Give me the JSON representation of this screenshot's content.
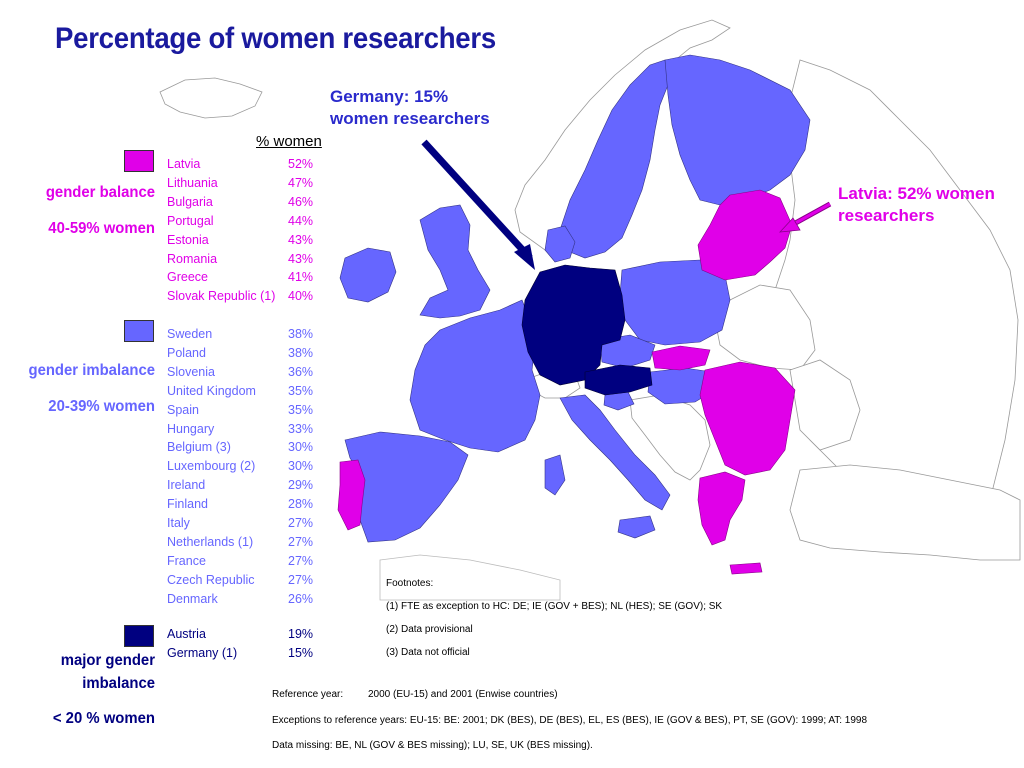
{
  "title": "Percentage of women researchers",
  "colors": {
    "title": "#1a1a9e",
    "balance": "#e000e8",
    "imbalance": "#6666ff",
    "major_imbalance": "#000080",
    "land": "#ffffff",
    "border": "#888888"
  },
  "table_header": "% women",
  "categories": [
    {
      "id": "balance",
      "label_lines": [
        "gender balance",
        "40-59% women"
      ],
      "color": "#e000e8",
      "rows": [
        {
          "country": "Latvia",
          "value": "52%"
        },
        {
          "country": "Lithuania",
          "value": "47%"
        },
        {
          "country": "Bulgaria",
          "value": "46%"
        },
        {
          "country": "Portugal",
          "value": "44%"
        },
        {
          "country": "Estonia",
          "value": "43%"
        },
        {
          "country": "Romania",
          "value": "43%"
        },
        {
          "country": "Greece",
          "value": "41%"
        },
        {
          "country": "Slovak Republic (1)",
          "value": "40%"
        }
      ]
    },
    {
      "id": "imbalance",
      "label_lines": [
        "gender imbalance",
        "20-39% women"
      ],
      "color": "#6666ff",
      "rows": [
        {
          "country": "Sweden",
          "value": "38%"
        },
        {
          "country": "Poland",
          "value": "38%"
        },
        {
          "country": "Slovenia",
          "value": "36%"
        },
        {
          "country": "United Kingdom",
          "value": "35%"
        },
        {
          "country": "Spain",
          "value": "35%"
        },
        {
          "country": "Hungary",
          "value": "33%"
        },
        {
          "country": "Belgium (3)",
          "value": "30%"
        },
        {
          "country": "Luxembourg (2)",
          "value": "30%"
        },
        {
          "country": "Ireland",
          "value": "29%"
        },
        {
          "country": "Finland",
          "value": "28%"
        },
        {
          "country": "Italy",
          "value": "27%"
        },
        {
          "country": "Netherlands (1)",
          "value": "27%"
        },
        {
          "country": "France",
          "value": "27%"
        },
        {
          "country": "Czech Republic",
          "value": "27%"
        },
        {
          "country": "Denmark",
          "value": "26%"
        }
      ]
    },
    {
      "id": "major",
      "label_lines": [
        "major gender",
        "imbalance",
        "< 20 % women"
      ],
      "color": "#000080",
      "rows": [
        {
          "country": "Austria",
          "value": "19%"
        },
        {
          "country": "Germany (1)",
          "value": "15%"
        }
      ]
    }
  ],
  "callouts": {
    "germany": "Germany: 15% women researchers",
    "germany_line1": "Germany: 15%",
    "germany_line2": "women researchers",
    "latvia_line1": "Latvia: 52% women",
    "latvia_line2": "researchers"
  },
  "footnotes": {
    "heading": "Footnotes:",
    "items": [
      "(1) FTE as exception to HC: DE; IE (GOV + BES); NL (HES); SE (GOV); SK",
      "(2) Data provisional",
      "(3) Data not official"
    ]
  },
  "reference": {
    "year_label": "Reference year:",
    "year_value": "2000 (EU-15) and 2001 (Enwise countries)",
    "exceptions": "Exceptions to reference years: EU-15: BE: 2001; DK (BES), DE (BES), EL, ES (BES), IE (GOV & BES), PT, SE (GOV): 1999; AT: 1998",
    "missing": "Data missing: BE, NL (GOV & BES missing); LU, SE, UK (BES missing)."
  }
}
